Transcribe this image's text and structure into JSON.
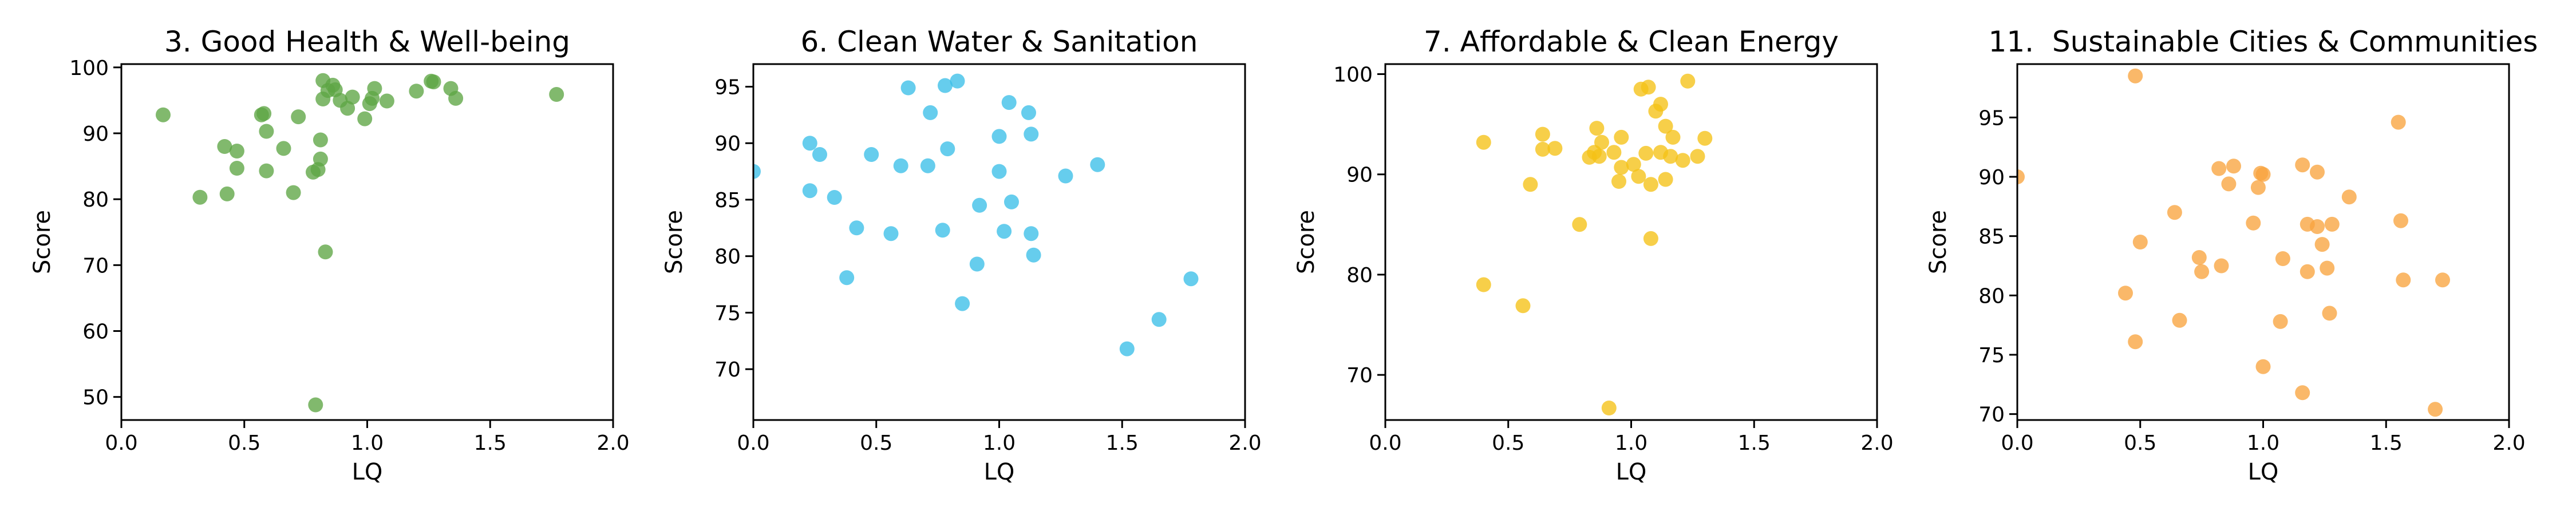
{
  "chart_data": [
    {
      "type": "scatter",
      "title": "3. Good Health & Well-being",
      "xlabel": "LQ",
      "ylabel": "Score",
      "xlim": [
        0,
        2
      ],
      "ylim": [
        46.5,
        100.5
      ],
      "xticks": [
        0.0,
        0.5,
        1.0,
        1.5,
        2.0
      ],
      "xtick_labels": [
        "0.0",
        "0.5",
        "1.0",
        "1.5",
        "2.0"
      ],
      "yticks": [
        50,
        60,
        70,
        80,
        90,
        100
      ],
      "ytick_labels": [
        "50",
        "60",
        "70",
        "80",
        "90",
        "100"
      ],
      "color": "#5da544",
      "grid": false,
      "points": [
        [
          0.17,
          92.8
        ],
        [
          0.32,
          80.3
        ],
        [
          0.42,
          88.0
        ],
        [
          0.43,
          80.8
        ],
        [
          0.47,
          87.3
        ],
        [
          0.47,
          84.7
        ],
        [
          0.57,
          92.8
        ],
        [
          0.58,
          93.0
        ],
        [
          0.59,
          90.3
        ],
        [
          0.59,
          84.3
        ],
        [
          0.66,
          87.7
        ],
        [
          0.7,
          81.0
        ],
        [
          0.72,
          92.5
        ],
        [
          0.78,
          84.1
        ],
        [
          0.79,
          48.8
        ],
        [
          0.8,
          84.5
        ],
        [
          0.81,
          86.1
        ],
        [
          0.81,
          89.0
        ],
        [
          0.82,
          95.2
        ],
        [
          0.82,
          98.0
        ],
        [
          0.83,
          72.0
        ],
        [
          0.84,
          96.5
        ],
        [
          0.86,
          97.3
        ],
        [
          0.87,
          96.6
        ],
        [
          0.89,
          95.0
        ],
        [
          0.92,
          93.8
        ],
        [
          0.94,
          95.5
        ],
        [
          0.99,
          92.2
        ],
        [
          1.01,
          94.5
        ],
        [
          1.02,
          95.3
        ],
        [
          1.03,
          96.8
        ],
        [
          1.08,
          94.9
        ],
        [
          1.2,
          96.4
        ],
        [
          1.26,
          97.9
        ],
        [
          1.27,
          97.8
        ],
        [
          1.34,
          96.8
        ],
        [
          1.36,
          95.3
        ],
        [
          1.77,
          95.9
        ]
      ]
    },
    {
      "type": "scatter",
      "title": "6. Clean Water & Sanitation",
      "xlabel": "LQ",
      "ylabel": "Score",
      "xlim": [
        0,
        2
      ],
      "ylim": [
        65.5,
        97
      ],
      "xticks": [
        0.0,
        0.5,
        1.0,
        1.5,
        2.0
      ],
      "xtick_labels": [
        "0.0",
        "0.5",
        "1.0",
        "1.5",
        "2.0"
      ],
      "yticks": [
        70,
        75,
        80,
        85,
        90,
        95
      ],
      "ytick_labels": [
        "70",
        "75",
        "80",
        "85",
        "90",
        "95"
      ],
      "color": "#3bbfe8",
      "grid": false,
      "points": [
        [
          0.0,
          87.5
        ],
        [
          0.23,
          85.8
        ],
        [
          0.23,
          90.0
        ],
        [
          0.27,
          89.0
        ],
        [
          0.33,
          85.2
        ],
        [
          0.38,
          78.1
        ],
        [
          0.42,
          82.5
        ],
        [
          0.48,
          89.0
        ],
        [
          0.56,
          82.0
        ],
        [
          0.6,
          88.0
        ],
        [
          0.63,
          94.9
        ],
        [
          0.71,
          88.0
        ],
        [
          0.72,
          92.7
        ],
        [
          0.77,
          82.3
        ],
        [
          0.78,
          95.1
        ],
        [
          0.79,
          89.5
        ],
        [
          0.83,
          95.5
        ],
        [
          0.85,
          75.8
        ],
        [
          0.91,
          79.3
        ],
        [
          0.92,
          84.5
        ],
        [
          1.0,
          90.6
        ],
        [
          1.0,
          87.5
        ],
        [
          1.02,
          82.2
        ],
        [
          1.04,
          93.6
        ],
        [
          1.05,
          84.8
        ],
        [
          1.12,
          92.7
        ],
        [
          1.13,
          90.8
        ],
        [
          1.13,
          82.0
        ],
        [
          1.14,
          80.1
        ],
        [
          1.27,
          87.1
        ],
        [
          1.4,
          88.1
        ],
        [
          1.52,
          71.8
        ],
        [
          1.65,
          74.4
        ],
        [
          1.78,
          78.0
        ]
      ]
    },
    {
      "type": "scatter",
      "title": "7. Affordable & Clean Energy",
      "xlabel": "LQ",
      "ylabel": "Score",
      "xlim": [
        0,
        2
      ],
      "ylim": [
        65.5,
        101
      ],
      "xticks": [
        0.0,
        0.5,
        1.0,
        1.5,
        2.0
      ],
      "xtick_labels": [
        "0.0",
        "0.5",
        "1.0",
        "1.5",
        "2.0"
      ],
      "yticks": [
        70,
        80,
        90,
        100
      ],
      "ytick_labels": [
        "70",
        "80",
        "90",
        "100"
      ],
      "color": "#f5c116",
      "grid": false,
      "points": [
        [
          0.4,
          93.2
        ],
        [
          0.4,
          79.0
        ],
        [
          0.56,
          76.9
        ],
        [
          0.59,
          89.0
        ],
        [
          0.64,
          94.0
        ],
        [
          0.64,
          92.5
        ],
        [
          0.69,
          92.6
        ],
        [
          0.79,
          85.0
        ],
        [
          0.83,
          91.7
        ],
        [
          0.85,
          92.2
        ],
        [
          0.86,
          94.6
        ],
        [
          0.87,
          91.8
        ],
        [
          0.88,
          93.2
        ],
        [
          0.91,
          66.7
        ],
        [
          0.93,
          92.2
        ],
        [
          0.95,
          89.3
        ],
        [
          0.96,
          93.7
        ],
        [
          0.96,
          90.7
        ],
        [
          1.01,
          91.0
        ],
        [
          1.03,
          89.8
        ],
        [
          1.04,
          98.5
        ],
        [
          1.06,
          92.1
        ],
        [
          1.07,
          98.7
        ],
        [
          1.08,
          89.0
        ],
        [
          1.08,
          83.6
        ],
        [
          1.1,
          96.3
        ],
        [
          1.12,
          97.0
        ],
        [
          1.12,
          92.2
        ],
        [
          1.14,
          89.5
        ],
        [
          1.14,
          94.8
        ],
        [
          1.16,
          91.8
        ],
        [
          1.17,
          93.7
        ],
        [
          1.21,
          91.4
        ],
        [
          1.23,
          99.3
        ],
        [
          1.27,
          91.8
        ],
        [
          1.3,
          93.6
        ]
      ]
    },
    {
      "type": "scatter",
      "title": "11.  Sustainable Cities & Communities",
      "xlabel": "LQ",
      "ylabel": "Score",
      "xlim": [
        0,
        2
      ],
      "ylim": [
        69.5,
        99.5
      ],
      "xticks": [
        0.0,
        0.5,
        1.0,
        1.5,
        2.0
      ],
      "xtick_labels": [
        "0.0",
        "0.5",
        "1.0",
        "1.5",
        "2.0"
      ],
      "yticks": [
        70,
        75,
        80,
        85,
        90,
        95
      ],
      "ytick_labels": [
        "70",
        "75",
        "80",
        "85",
        "90",
        "95"
      ],
      "color": "#f9a43f",
      "grid": false,
      "points": [
        [
          0.0,
          90.0
        ],
        [
          0.44,
          80.2
        ],
        [
          0.48,
          76.1
        ],
        [
          0.48,
          98.5
        ],
        [
          0.5,
          84.5
        ],
        [
          0.64,
          87.0
        ],
        [
          0.66,
          77.9
        ],
        [
          0.74,
          83.2
        ],
        [
          0.75,
          82.0
        ],
        [
          0.82,
          90.7
        ],
        [
          0.83,
          82.5
        ],
        [
          0.86,
          89.4
        ],
        [
          0.88,
          90.9
        ],
        [
          0.96,
          86.1
        ],
        [
          0.98,
          89.1
        ],
        [
          0.99,
          90.3
        ],
        [
          1.0,
          90.2
        ],
        [
          1.0,
          74.0
        ],
        [
          1.07,
          77.8
        ],
        [
          1.08,
          83.1
        ],
        [
          1.16,
          91.0
        ],
        [
          1.16,
          71.8
        ],
        [
          1.18,
          82.0
        ],
        [
          1.18,
          86.0
        ],
        [
          1.22,
          85.8
        ],
        [
          1.22,
          90.4
        ],
        [
          1.24,
          84.3
        ],
        [
          1.26,
          82.3
        ],
        [
          1.27,
          78.5
        ],
        [
          1.28,
          86.0
        ],
        [
          1.35,
          88.3
        ],
        [
          1.55,
          94.6
        ],
        [
          1.56,
          86.3
        ],
        [
          1.57,
          81.3
        ],
        [
          1.7,
          70.4
        ],
        [
          1.73,
          81.3
        ]
      ]
    }
  ]
}
